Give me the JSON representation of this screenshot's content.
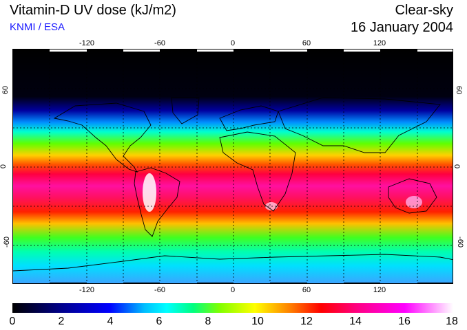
{
  "header": {
    "title": "Vitamin-D UV dose (kJ/m2)",
    "credit": "KNMI / ESA",
    "sky_condition": "Clear-sky",
    "date": "16 January 2004"
  },
  "map": {
    "longitude_ticks": [
      "-120",
      "-60",
      "0",
      "60",
      "120"
    ],
    "latitude_ticks_left": [
      "60",
      "0",
      "-60"
    ],
    "latitude_ticks_right": [
      "60",
      "0",
      "-60"
    ],
    "projection": "equirectangular",
    "lon_range": [
      -180,
      180
    ],
    "lat_range": [
      -90,
      90
    ],
    "grid": "dotted every 30 degrees"
  },
  "colorbar": {
    "ticks": [
      "0",
      "2",
      "4",
      "6",
      "8",
      "10",
      "12",
      "14",
      "16",
      "18"
    ],
    "range": [
      0,
      18
    ],
    "colors": [
      "#000000",
      "#00008b",
      "#0000ff",
      "#00bfff",
      "#00ffff",
      "#00ff80",
      "#80ff00",
      "#ffff00",
      "#ff8000",
      "#ff0000",
      "#ff0080",
      "#ff00ff",
      "#ffffff"
    ]
  },
  "chart_data": {
    "type": "heatmap",
    "title": "Vitamin-D UV dose (kJ/m2)",
    "xlabel": "",
    "ylabel": "",
    "latitude_profile": [
      {
        "lat": 90,
        "dose": 0
      },
      {
        "lat": 60,
        "dose": 0.5
      },
      {
        "lat": 45,
        "dose": 2.5
      },
      {
        "lat": 35,
        "dose": 5
      },
      {
        "lat": 25,
        "dose": 7
      },
      {
        "lat": 15,
        "dose": 10
      },
      {
        "lat": 5,
        "dose": 13
      },
      {
        "lat": -5,
        "dose": 15
      },
      {
        "lat": -15,
        "dose": 16
      },
      {
        "lat": -25,
        "dose": 15.5
      },
      {
        "lat": -35,
        "dose": 14
      },
      {
        "lat": -45,
        "dose": 11
      },
      {
        "lat": -55,
        "dose": 9
      },
      {
        "lat": -65,
        "dose": 7
      },
      {
        "lat": -75,
        "dose": 5
      },
      {
        "lat": -90,
        "dose": 4
      }
    ]
  }
}
